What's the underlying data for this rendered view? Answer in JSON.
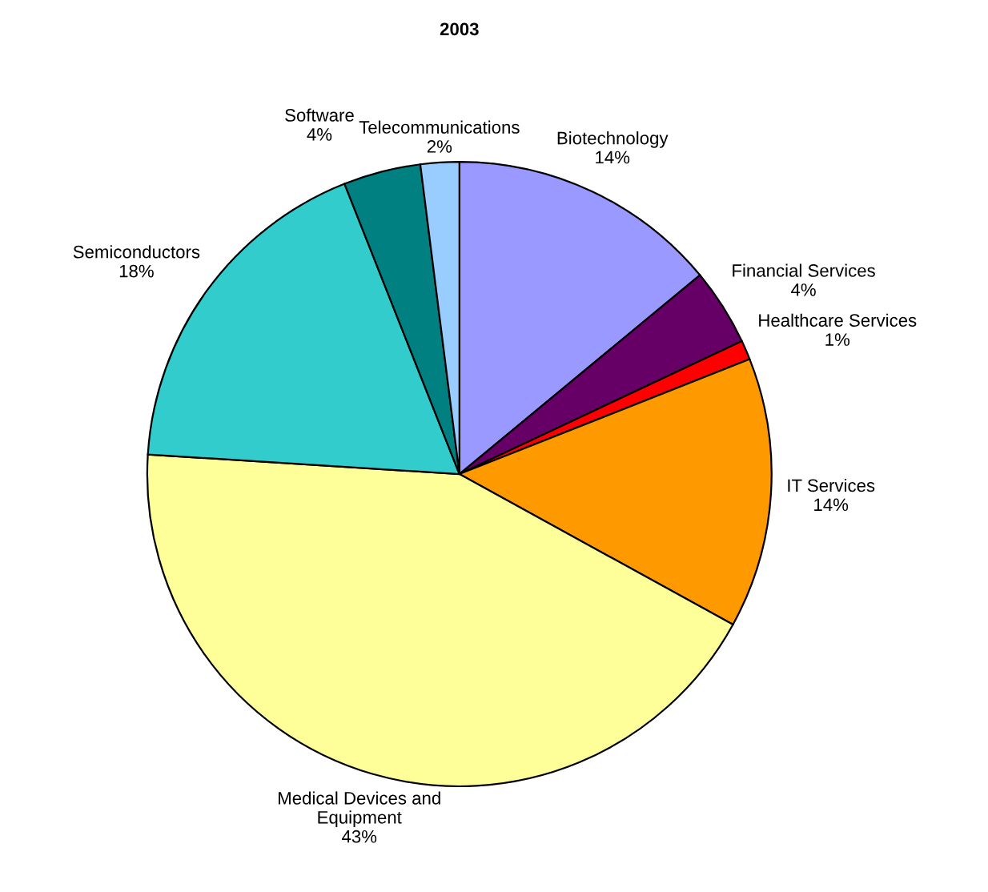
{
  "chart_data": {
    "type": "pie",
    "title": "2003",
    "categories": [
      "Biotechnology",
      "Financial Services",
      "Healthcare Services",
      "IT Services",
      "Medical Devices and\nEquipment",
      "Semiconductors",
      "Software",
      "Telecommunications"
    ],
    "values": [
      14,
      4,
      1,
      14,
      43,
      18,
      4,
      2
    ],
    "value_labels": [
      "14%",
      "4%",
      "1%",
      "14%",
      "43%",
      "18%",
      "4%",
      "2%"
    ],
    "colors": [
      "#9999ff",
      "#660066",
      "#ff0000",
      "#ff9900",
      "#ffff99",
      "#33cccc",
      "#008080",
      "#99ccff"
    ]
  }
}
